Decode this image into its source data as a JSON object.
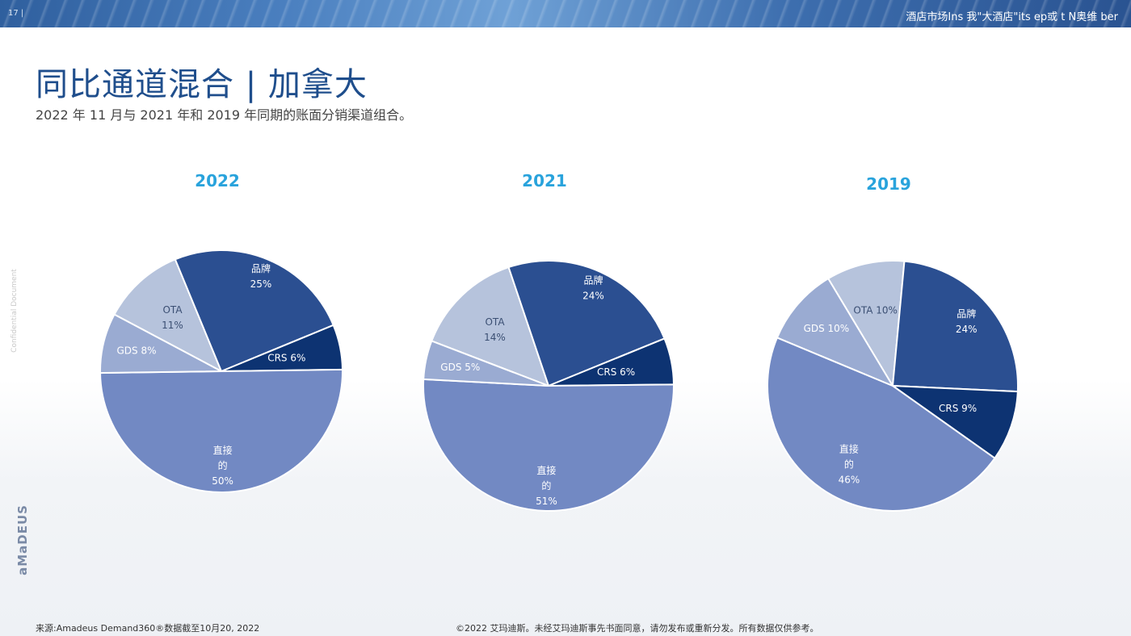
{
  "header": {
    "page_number": "17 |",
    "band_text": "酒店市场Ins 我\"大酒店\"its  ep或 t    N奥维    ber"
  },
  "title": "同比通道混合 | 加拿大",
  "subtitle": "2022 年 11 月与 2021 年和 2019 年同期的账面分销渠道组合。",
  "side": {
    "confidential": "Confidential Document",
    "logo": "aMaDEUS"
  },
  "footer": {
    "source": "来源:Amadeus Demand360®数据截至10月20, 2022",
    "copyright": "©2022 艾玛迪斯。未经艾玛迪斯事先书面同意，请勿发布或重新分发。所有数据仅供参考。"
  },
  "colors": {
    "brand": "#2b4f91",
    "crs": "#0d3372",
    "ota": "#b6c3dc",
    "gds": "#9aabd2",
    "direct": "#7289c3",
    "year_label": "#29a3dc"
  },
  "chart_data": [
    {
      "type": "pie",
      "title": "2022",
      "slices": [
        {
          "label": "品牌",
          "value_label": "25%",
          "value": 25,
          "color": "#2b4f91"
        },
        {
          "label": "CRS",
          "value_label": "6%",
          "value": 6,
          "color": "#0d3372"
        },
        {
          "label": "直接的",
          "value_label": "50%",
          "value": 50,
          "color": "#7289c3"
        },
        {
          "label": "GDS",
          "value_label": "8%",
          "value": 8,
          "color": "#9aabd2"
        },
        {
          "label": "OTA",
          "value_label": "11%",
          "value": 11,
          "color": "#b6c3dc"
        }
      ]
    },
    {
      "type": "pie",
      "title": "2021",
      "slices": [
        {
          "label": "品牌",
          "value_label": "24%",
          "value": 24,
          "color": "#2b4f91"
        },
        {
          "label": "CRS",
          "value_label": "6%",
          "value": 6,
          "color": "#0d3372"
        },
        {
          "label": "直接的",
          "value_label": "51%",
          "value": 51,
          "color": "#7289c3"
        },
        {
          "label": "GDS",
          "value_label": "5%",
          "value": 5,
          "color": "#9aabd2"
        },
        {
          "label": "OTA",
          "value_label": "14%",
          "value": 14,
          "color": "#b6c3dc"
        }
      ]
    },
    {
      "type": "pie",
      "title": "2019",
      "slices": [
        {
          "label": "品牌",
          "value_label": "24%",
          "value": 24,
          "color": "#2b4f91"
        },
        {
          "label": "CRS",
          "value_label": "9%",
          "value": 9,
          "color": "#0d3372"
        },
        {
          "label": "直接的",
          "value_label": "46%",
          "value": 46,
          "color": "#7289c3"
        },
        {
          "label": "GDS",
          "value_label": "10%",
          "value": 10,
          "color": "#9aabd2"
        },
        {
          "label": "OTA",
          "value_label": "10%",
          "value": 10,
          "color": "#b6c3dc"
        }
      ]
    }
  ]
}
